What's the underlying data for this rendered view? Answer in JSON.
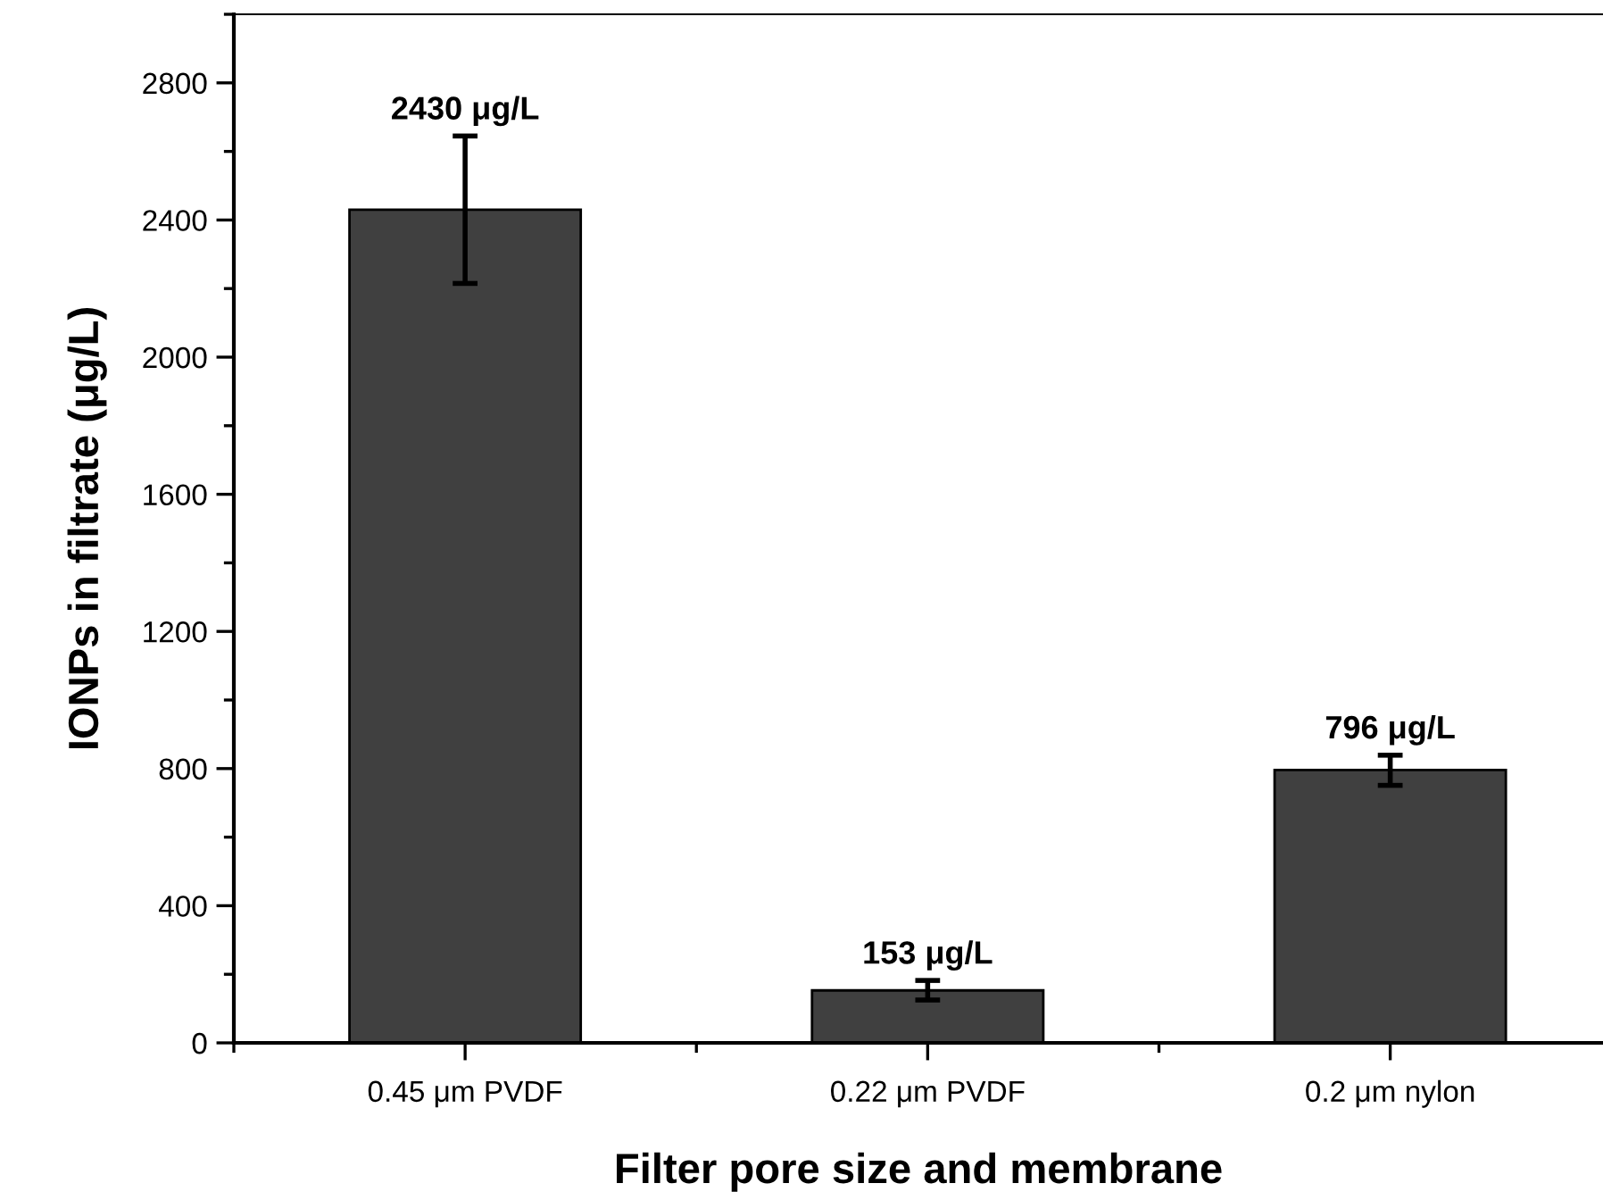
{
  "chart_data": {
    "type": "bar",
    "xlabel": "Filter pore size and membrane",
    "ylabel": "IONPs in filtrate (μg/L)",
    "categories": [
      "0.45 μm PVDF",
      "0.22 μm PVDF",
      "0.2 μm nylon"
    ],
    "values": [
      2430,
      153,
      796
    ],
    "color": "#404040",
    "errors": [
      [
        2215,
        2645
      ],
      [
        125,
        182
      ],
      [
        751,
        839
      ]
    ],
    "value_labels": [
      "2430 μg/L",
      "153 μg/L",
      "796 μg/L"
    ],
    "ylim": [
      0,
      3000
    ],
    "yticks": [
      0,
      400,
      800,
      1200,
      1600,
      2000,
      2400,
      2800
    ],
    "grid": false
  }
}
